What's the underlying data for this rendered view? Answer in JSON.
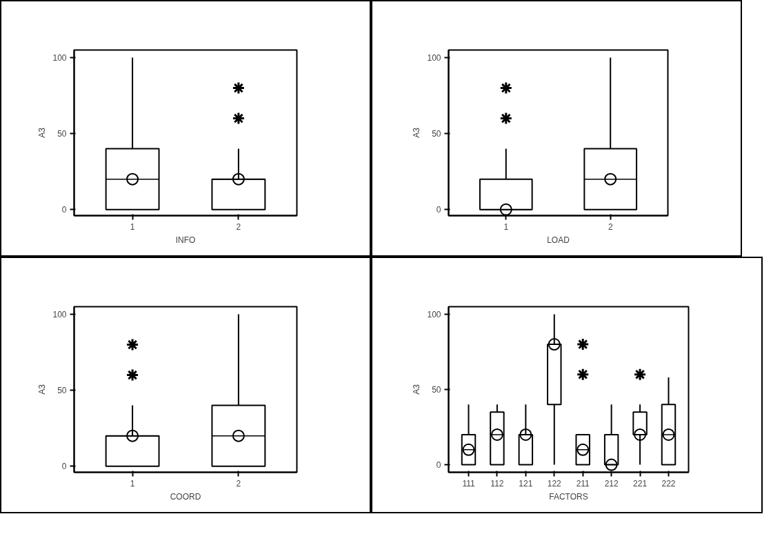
{
  "chart_data": [
    {
      "type": "box",
      "categories": [
        "1",
        "2"
      ],
      "xlabel": "INFO",
      "ylabel": "A3",
      "ylim": [
        -4,
        105
      ],
      "yticks": [
        0,
        50,
        100
      ],
      "grid": false,
      "marker": "circle",
      "boxes": [
        {
          "low": 0,
          "q1": 0,
          "median": 20,
          "q3": 40,
          "high": 100,
          "mean": 20
        },
        {
          "low": 0,
          "q1": 0,
          "median": 20,
          "q3": 20,
          "high": 40,
          "mean": 20,
          "outliers": [
            60,
            80
          ]
        }
      ]
    },
    {
      "type": "box",
      "categories": [
        "1",
        "2"
      ],
      "xlabel": "LOAD",
      "ylabel": "A3",
      "ylim": [
        -4,
        105
      ],
      "yticks": [
        0,
        50,
        100
      ],
      "grid": false,
      "marker": "circle",
      "boxes": [
        {
          "low": 0,
          "q1": 0,
          "median": 0,
          "q3": 20,
          "high": 40,
          "mean": 0,
          "outliers": [
            60,
            80
          ]
        },
        {
          "low": 0,
          "q1": 0,
          "median": 20,
          "q3": 40,
          "high": 100,
          "mean": 20
        }
      ]
    },
    {
      "type": "box",
      "categories": [
        "1",
        "2"
      ],
      "xlabel": "COORD",
      "ylabel": "A3",
      "ylim": [
        -4,
        105
      ],
      "yticks": [
        0,
        50,
        100
      ],
      "grid": false,
      "marker": "circle",
      "boxes": [
        {
          "low": 0,
          "q1": 0,
          "median": 20,
          "q3": 20,
          "high": 40,
          "mean": 20,
          "outliers": [
            60,
            80
          ]
        },
        {
          "low": 0,
          "q1": 0,
          "median": 20,
          "q3": 40,
          "high": 100,
          "mean": 20
        }
      ]
    },
    {
      "type": "box",
      "categories": [
        "111",
        "112",
        "121",
        "122",
        "211",
        "212",
        "221",
        "222"
      ],
      "xlabel": "FACTORS",
      "ylabel": "A3",
      "ylim": [
        -5,
        105
      ],
      "yticks": [
        0,
        50,
        100
      ],
      "grid": false,
      "marker": "circle",
      "boxes": [
        {
          "low": 0,
          "q1": 0,
          "median": 10,
          "q3": 20,
          "high": 40,
          "mean": 10
        },
        {
          "low": 0,
          "q1": 0,
          "median": 20,
          "q3": 35,
          "high": 40,
          "mean": 20
        },
        {
          "low": 0,
          "q1": 0,
          "median": 20,
          "q3": 20,
          "high": 40,
          "mean": 20
        },
        {
          "low": 0,
          "q1": 40,
          "median": 80,
          "q3": 80,
          "high": 100,
          "mean": 80
        },
        {
          "low": 0,
          "q1": 0,
          "median": 10,
          "q3": 20,
          "high": 20,
          "mean": 10,
          "outliers": [
            60,
            80
          ]
        },
        {
          "low": 0,
          "q1": 0,
          "median": 0,
          "q3": 20,
          "high": 40,
          "mean": 0
        },
        {
          "low": 0,
          "q1": 20,
          "median": 20,
          "q3": 35,
          "high": 40,
          "mean": 20,
          "outliers": [
            60
          ]
        },
        {
          "low": 0,
          "q1": 0,
          "median": 20,
          "q3": 40,
          "high": 58,
          "mean": 20
        }
      ]
    }
  ]
}
